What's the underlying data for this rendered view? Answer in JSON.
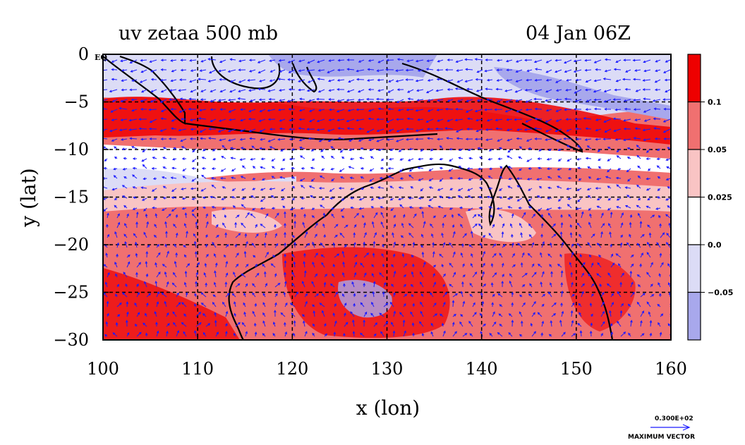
{
  "chart_data": {
    "type": "heatmap",
    "title_left": "uv zetaa 500 mb",
    "title_right": "04 Jan 06Z",
    "xlabel": "x (lon)",
    "ylabel": "y (lat)",
    "xlim": [
      100,
      160
    ],
    "ylim": [
      -30,
      0
    ],
    "x_ticks": [
      {
        "value": 100,
        "label": "100"
      },
      {
        "value": 110,
        "label": "110"
      },
      {
        "value": 120,
        "label": "120"
      },
      {
        "value": 130,
        "label": "130"
      },
      {
        "value": 140,
        "label": "140"
      },
      {
        "value": 150,
        "label": "150"
      },
      {
        "value": 160,
        "label": "160"
      }
    ],
    "y_ticks": [
      {
        "value": 0,
        "label": "0"
      },
      {
        "value": -5,
        "label": "−5"
      },
      {
        "value": -10,
        "label": "−10"
      },
      {
        "value": -15,
        "label": "−15"
      },
      {
        "value": -20,
        "label": "−20"
      },
      {
        "value": -25,
        "label": "−25"
      },
      {
        "value": -30,
        "label": "−30"
      }
    ],
    "eq_label": "EQ",
    "grid": true,
    "colorbar": {
      "bins": [
        {
          "color": "#ee0000",
          "top_label": ""
        },
        {
          "color": "#f07070",
          "top_label": "0.1"
        },
        {
          "color": "#f9c4c4",
          "top_label": "0.05"
        },
        {
          "color": "#ffffff",
          "top_label": "0.025"
        },
        {
          "color": "#dcdcf6",
          "top_label": "0.0"
        },
        {
          "color": "#a8a8ec",
          "top_label": "−0.05"
        }
      ]
    },
    "vector_key": {
      "value_label": "0.300E+02",
      "caption": "MAXIMUM VECTOR"
    }
  }
}
